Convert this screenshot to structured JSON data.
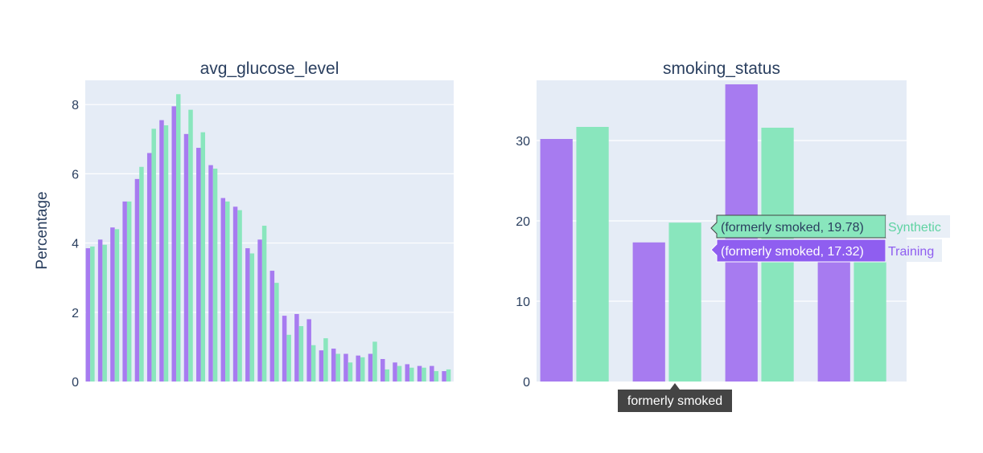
{
  "yaxis_title": "Percentage",
  "colors": {
    "training": "#a77bf0",
    "synthetic": "#89e6bd",
    "plot_bg": "#e5ecf6",
    "axis_text": "#2a3f5f"
  },
  "hover": {
    "axis_label": "formerly smoked",
    "synthetic_label": "(formerly smoked, 19.78)",
    "synthetic_name": "Synthetic",
    "training_label": "(formerly smoked, 17.32)",
    "training_name": "Training"
  },
  "chart_data": [
    {
      "type": "bar",
      "title": "avg_glucose_level",
      "ylabel": "Percentage",
      "ylim": [
        0,
        8.7
      ],
      "yticks": [
        0,
        2,
        4,
        6,
        8
      ],
      "xticks_visible": false,
      "grid": true,
      "series": [
        {
          "name": "Training",
          "values": [
            3.85,
            4.1,
            4.45,
            5.2,
            5.85,
            6.6,
            7.55,
            7.95,
            7.15,
            6.75,
            6.25,
            5.3,
            5.05,
            3.85,
            4.1,
            3.2,
            1.9,
            1.95,
            1.8,
            0.9,
            0.95,
            0.8,
            0.75,
            0.8,
            0.65,
            0.55,
            0.5,
            0.45,
            0.45,
            0.3
          ]
        },
        {
          "name": "Synthetic",
          "values": [
            3.9,
            3.95,
            4.4,
            5.2,
            6.2,
            7.3,
            7.4,
            8.3,
            7.85,
            7.2,
            6.15,
            5.2,
            4.95,
            3.7,
            4.5,
            2.85,
            1.35,
            1.6,
            1.05,
            1.25,
            0.8,
            0.55,
            0.7,
            1.15,
            0.35,
            0.45,
            0.4,
            0.4,
            0.3,
            0.35
          ]
        }
      ]
    },
    {
      "type": "bar",
      "title": "smoking_status",
      "categories": [
        "",
        "formerly smoked",
        "",
        ""
      ],
      "ylim": [
        0,
        37.5
      ],
      "yticks": [
        0,
        10,
        20,
        30
      ],
      "xticks_visible": false,
      "grid": true,
      "series": [
        {
          "name": "Training",
          "values": [
            30.2,
            17.32,
            37.0,
            16.0
          ]
        },
        {
          "name": "Synthetic",
          "values": [
            31.7,
            19.78,
            31.6,
            15.5
          ]
        }
      ]
    }
  ]
}
